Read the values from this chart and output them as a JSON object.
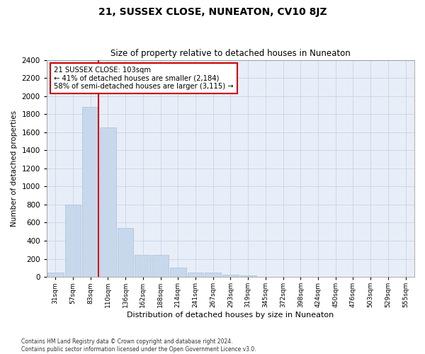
{
  "title": "21, SUSSEX CLOSE, NUNEATON, CV10 8JZ",
  "subtitle": "Size of property relative to detached houses in Nuneaton",
  "xlabel": "Distribution of detached houses by size in Nuneaton",
  "ylabel": "Number of detached properties",
  "categories": [
    "31sqm",
    "57sqm",
    "83sqm",
    "110sqm",
    "136sqm",
    "162sqm",
    "188sqm",
    "214sqm",
    "241sqm",
    "267sqm",
    "293sqm",
    "319sqm",
    "345sqm",
    "372sqm",
    "398sqm",
    "424sqm",
    "450sqm",
    "476sqm",
    "503sqm",
    "529sqm",
    "555sqm"
  ],
  "values": [
    50,
    800,
    1880,
    1650,
    540,
    240,
    240,
    105,
    50,
    50,
    25,
    15,
    3,
    0,
    0,
    0,
    0,
    0,
    0,
    0,
    0
  ],
  "bar_color": "#c8d8ec",
  "bar_edge_color": "#a8c0d8",
  "vline_color": "#cc0000",
  "annotation_title": "21 SUSSEX CLOSE: 103sqm",
  "annotation_line1": "← 41% of detached houses are smaller (2,184)",
  "annotation_line2": "58% of semi-detached houses are larger (3,115) →",
  "annotation_box_color": "#cc0000",
  "ylim": [
    0,
    2400
  ],
  "yticks": [
    0,
    200,
    400,
    600,
    800,
    1000,
    1200,
    1400,
    1600,
    1800,
    2000,
    2200,
    2400
  ],
  "footer_line1": "Contains HM Land Registry data © Crown copyright and database right 2024.",
  "footer_line2": "Contains public sector information licensed under the Open Government Licence v3.0.",
  "bg_color": "#ffffff",
  "plot_bg_color": "#e8eef8",
  "grid_color": "#c8d4e4"
}
